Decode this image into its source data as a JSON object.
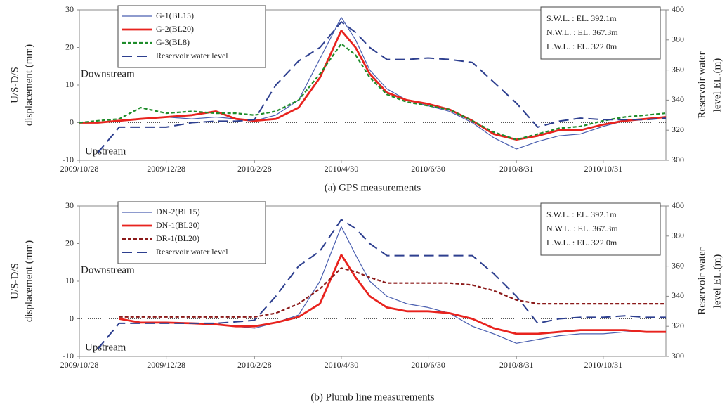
{
  "chart_data": [
    {
      "type": "line",
      "caption": "(a) GPS measurements",
      "ylabel": [
        "U/S-D/S",
        "displacement (mm)"
      ],
      "y2label": [
        "Reservoir water",
        "level EL.(m)"
      ],
      "annotations": [
        "Downstream",
        "Upstream"
      ],
      "notes": [
        "S.W.L. : EL. 392.1m",
        "N.W.L. : EL. 367.3m",
        "L.W.L. : EL. 322.0m"
      ],
      "legend": "upper left",
      "zero_line": true,
      "x": [
        "2009/10/28",
        "2009/11/10",
        "2009/11/25",
        "2009/12/10",
        "2009/12/28",
        "2010/1/15",
        "2010/2/1",
        "2010/2/15",
        "2010/2/28",
        "2010/3/15",
        "2010/3/31",
        "2010/4/15",
        "2010/4/30",
        "2010/5/10",
        "2010/5/20",
        "2010/6/1",
        "2010/6/15",
        "2010/6/30",
        "2010/7/15",
        "2010/7/31",
        "2010/8/15",
        "2010/8/31",
        "2010/9/15",
        "2010/9/30",
        "2010/10/15",
        "2010/10/31",
        "2010/11/15",
        "2010/11/30",
        "2010/12/14"
      ],
      "xlim": [
        "2009/10/28",
        "2010/12/14"
      ],
      "xticks": [
        "2009/10/28",
        "2009/12/28",
        "2010/2/28",
        "2010/4/30",
        "2010/6/30",
        "2010/8/31",
        "2010/10/31"
      ],
      "ylim": [
        -10,
        30
      ],
      "yticks": [
        -10,
        0,
        10,
        20,
        30
      ],
      "y2lim": [
        300,
        400
      ],
      "y2ticks": [
        300,
        320,
        340,
        360,
        380,
        400
      ],
      "series": [
        {
          "name": "G-1(BL15)",
          "color": "#4a5fb0",
          "style": "thin",
          "values": [
            0,
            0,
            0.5,
            1,
            1.5,
            1,
            1.5,
            1,
            0.5,
            2,
            6,
            17,
            28,
            22,
            14,
            9,
            6,
            4.5,
            3,
            0,
            -4,
            -7,
            -5,
            -3.5,
            -3,
            -1,
            0.5,
            1,
            1.5
          ]
        },
        {
          "name": "G-2(BL20)",
          "color": "#e8231e",
          "style": "thick",
          "values": [
            0,
            0,
            0.5,
            1,
            1.5,
            2,
            3,
            1,
            0.5,
            1,
            4,
            12,
            24.5,
            20,
            13,
            8,
            6,
            5,
            3.5,
            0.5,
            -3,
            -4.5,
            -3.5,
            -2,
            -2,
            -0.5,
            0.5,
            1,
            1.5
          ]
        },
        {
          "name": "G-3(BL8)",
          "color": "#1e8c2a",
          "style": "dashed",
          "values": [
            0,
            0.5,
            1,
            4,
            2.5,
            3,
            2.5,
            2.5,
            2,
            3,
            6,
            13,
            21,
            18,
            12,
            7.5,
            5.5,
            4.5,
            3.5,
            0.5,
            -2.5,
            -4.5,
            -3,
            -1.5,
            -1,
            0.5,
            1.5,
            2,
            2.5
          ]
        },
        {
          "name": "Reservoir water level",
          "color": "#2d3f8f",
          "style": "longdash",
          "axis": "y2",
          "values": [
            null,
            305,
            322,
            322,
            322,
            325,
            326,
            326,
            327,
            350,
            366,
            375,
            392,
            385,
            375,
            367,
            367,
            368,
            367,
            365,
            352,
            338,
            322,
            326,
            328,
            327,
            327,
            327,
            328
          ]
        }
      ]
    },
    {
      "type": "line",
      "caption": "(b) Plumb line measurements",
      "ylabel": [
        "U/S-D/S",
        "displacement (mm)"
      ],
      "y2label": [
        "Reservoir water",
        "level EL.(m)"
      ],
      "annotations": [
        "Downstream",
        "Upstream"
      ],
      "notes": [
        "S.W.L. : EL. 392.1m",
        "N.W.L. : EL. 367.3m",
        "L.W.L. : EL. 322.0m"
      ],
      "legend": "upper left",
      "zero_line": true,
      "x": [
        "2009/10/28",
        "2009/11/10",
        "2009/11/25",
        "2009/12/10",
        "2009/12/28",
        "2010/1/15",
        "2010/2/1",
        "2010/2/15",
        "2010/2/28",
        "2010/3/15",
        "2010/3/31",
        "2010/4/15",
        "2010/4/30",
        "2010/5/10",
        "2010/5/20",
        "2010/6/1",
        "2010/6/15",
        "2010/6/30",
        "2010/7/15",
        "2010/7/31",
        "2010/8/15",
        "2010/8/31",
        "2010/9/15",
        "2010/9/30",
        "2010/10/15",
        "2010/10/31",
        "2010/11/15",
        "2010/11/30",
        "2010/12/14"
      ],
      "xlim": [
        "2009/10/28",
        "2010/12/14"
      ],
      "xticks": [
        "2009/10/28",
        "2009/12/28",
        "2010/2/28",
        "2010/4/30",
        "2010/6/30",
        "2010/8/31",
        "2010/10/31"
      ],
      "ylim": [
        -10,
        30
      ],
      "yticks": [
        -10,
        0,
        10,
        20,
        30
      ],
      "y2lim": [
        300,
        400
      ],
      "y2ticks": [
        300,
        320,
        340,
        360,
        380,
        400
      ],
      "series": [
        {
          "name": "DN-2(BL15)",
          "color": "#4a5fb0",
          "style": "thin",
          "values": [
            null,
            null,
            0,
            -1,
            -1,
            -1.2,
            -1.5,
            -2,
            -2.5,
            -1,
            1,
            10,
            24.5,
            17,
            10,
            6,
            4,
            3,
            1.5,
            -2,
            -4,
            -6.5,
            -5.5,
            -4.5,
            -4,
            -4,
            -3.5,
            -3.5,
            -3.5
          ]
        },
        {
          "name": "DN-1(BL20)",
          "color": "#e8231e",
          "style": "thick",
          "values": [
            null,
            null,
            0,
            -1,
            -1,
            -1.2,
            -1.5,
            -2,
            -2,
            -1,
            0.5,
            4,
            17,
            11,
            6,
            3,
            2,
            2,
            1.5,
            0,
            -2.5,
            -4,
            -4,
            -3.5,
            -3,
            -3,
            -3,
            -3.5,
            -3.5
          ]
        },
        {
          "name": "DR-1(BL20)",
          "color": "#8b1a1a",
          "style": "dashed",
          "values": [
            null,
            null,
            0.5,
            0.5,
            0.5,
            0.5,
            0.5,
            0.5,
            0.5,
            1.5,
            4,
            8,
            13.5,
            12.5,
            11,
            9.5,
            9.5,
            9.5,
            9.5,
            9,
            7.5,
            5,
            4,
            4,
            4,
            4,
            4,
            4,
            4
          ]
        },
        {
          "name": "Reservoir water level",
          "color": "#2d3f8f",
          "style": "longdash",
          "axis": "y2",
          "values": [
            null,
            305,
            322,
            322,
            322,
            322,
            322,
            323,
            324,
            340,
            360,
            370,
            391,
            385,
            375,
            367,
            367,
            367,
            367,
            367,
            355,
            340,
            322,
            325,
            326,
            326,
            327,
            326,
            326
          ]
        }
      ]
    }
  ]
}
